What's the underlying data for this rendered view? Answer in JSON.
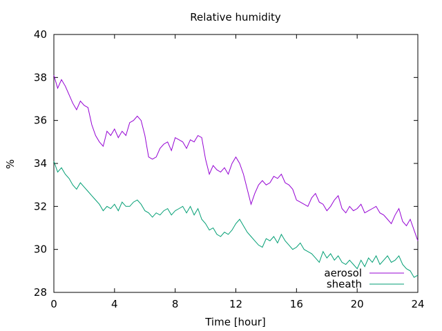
{
  "chart_data": {
    "type": "line",
    "title": "Relative humidity",
    "xlabel": "Time [hour]",
    "ylabel": "%",
    "xlim": [
      0,
      24
    ],
    "ylim": [
      28,
      40
    ],
    "x_ticks": [
      0,
      4,
      8,
      12,
      16,
      20,
      24
    ],
    "y_ticks": [
      28,
      30,
      32,
      34,
      36,
      38,
      40
    ],
    "grid": false,
    "legend_position": "bottom-right",
    "series": [
      {
        "name": "aerosol",
        "color": "#9400d3",
        "x": [
          0,
          0.25,
          0.5,
          0.75,
          1.0,
          1.25,
          1.5,
          1.75,
          2.0,
          2.25,
          2.5,
          2.75,
          3.0,
          3.25,
          3.5,
          3.75,
          4.0,
          4.25,
          4.5,
          4.75,
          5.0,
          5.25,
          5.5,
          5.75,
          6.0,
          6.25,
          6.5,
          6.75,
          7.0,
          7.25,
          7.5,
          7.75,
          8.0,
          8.25,
          8.5,
          8.75,
          9.0,
          9.25,
          9.5,
          9.75,
          10.0,
          10.25,
          10.5,
          10.75,
          11.0,
          11.25,
          11.5,
          11.75,
          12.0,
          12.25,
          12.5,
          12.75,
          13.0,
          13.25,
          13.5,
          13.75,
          14.0,
          14.25,
          14.5,
          14.75,
          15.0,
          15.25,
          15.5,
          15.75,
          16.0,
          16.25,
          16.5,
          16.75,
          17.0,
          17.25,
          17.5,
          17.75,
          18.0,
          18.25,
          18.5,
          18.75,
          19.0,
          19.25,
          19.5,
          19.75,
          20.0,
          20.25,
          20.5,
          20.75,
          21.0,
          21.25,
          21.5,
          21.75,
          22.0,
          22.25,
          22.5,
          22.75,
          23.0,
          23.25,
          23.5,
          23.75,
          24.0
        ],
        "y": [
          38.1,
          37.5,
          37.9,
          37.6,
          37.2,
          36.8,
          36.5,
          36.9,
          36.7,
          36.6,
          35.8,
          35.3,
          35.0,
          34.8,
          35.5,
          35.3,
          35.6,
          35.2,
          35.5,
          35.3,
          35.9,
          36.0,
          36.2,
          36.0,
          35.3,
          34.3,
          34.2,
          34.3,
          34.7,
          34.9,
          35.0,
          34.6,
          35.2,
          35.1,
          35.0,
          34.7,
          35.1,
          35.0,
          35.3,
          35.2,
          34.2,
          33.5,
          33.9,
          33.7,
          33.6,
          33.8,
          33.5,
          34.0,
          34.3,
          34.0,
          33.5,
          32.8,
          32.1,
          32.6,
          33.0,
          33.2,
          33.0,
          33.1,
          33.4,
          33.3,
          33.5,
          33.1,
          33.0,
          32.8,
          32.3,
          32.2,
          32.1,
          32.0,
          32.4,
          32.6,
          32.2,
          32.1,
          31.8,
          32.0,
          32.3,
          32.5,
          31.9,
          31.7,
          32.0,
          31.8,
          31.9,
          32.1,
          31.7,
          31.8,
          31.9,
          32.0,
          31.7,
          31.6,
          31.4,
          31.2,
          31.6,
          31.9,
          31.3,
          31.1,
          31.4,
          30.9,
          30.4
        ]
      },
      {
        "name": "sheath",
        "color": "#009e73",
        "x": [
          0,
          0.25,
          0.5,
          0.75,
          1.0,
          1.25,
          1.5,
          1.75,
          2.0,
          2.25,
          2.5,
          2.75,
          3.0,
          3.25,
          3.5,
          3.75,
          4.0,
          4.25,
          4.5,
          4.75,
          5.0,
          5.25,
          5.5,
          5.75,
          6.0,
          6.25,
          6.5,
          6.75,
          7.0,
          7.25,
          7.5,
          7.75,
          8.0,
          8.25,
          8.5,
          8.75,
          9.0,
          9.25,
          9.5,
          9.75,
          10.0,
          10.25,
          10.5,
          10.75,
          11.0,
          11.25,
          11.5,
          11.75,
          12.0,
          12.25,
          12.5,
          12.75,
          13.0,
          13.25,
          13.5,
          13.75,
          14.0,
          14.25,
          14.5,
          14.75,
          15.0,
          15.25,
          15.5,
          15.75,
          16.0,
          16.25,
          16.5,
          16.75,
          17.0,
          17.25,
          17.5,
          17.75,
          18.0,
          18.25,
          18.5,
          18.75,
          19.0,
          19.25,
          19.5,
          19.75,
          20.0,
          20.25,
          20.5,
          20.75,
          21.0,
          21.25,
          21.5,
          21.75,
          22.0,
          22.25,
          22.5,
          22.75,
          23.0,
          23.25,
          23.5,
          23.75,
          24.0
        ],
        "y": [
          34.1,
          33.6,
          33.8,
          33.5,
          33.3,
          33.0,
          32.8,
          33.1,
          32.9,
          32.7,
          32.5,
          32.3,
          32.1,
          31.8,
          32.0,
          31.9,
          32.1,
          31.8,
          32.2,
          32.0,
          32.0,
          32.2,
          32.3,
          32.1,
          31.8,
          31.7,
          31.5,
          31.7,
          31.6,
          31.8,
          31.9,
          31.6,
          31.8,
          31.9,
          32.0,
          31.7,
          32.0,
          31.6,
          31.9,
          31.4,
          31.2,
          30.9,
          31.0,
          30.7,
          30.6,
          30.8,
          30.7,
          30.9,
          31.2,
          31.4,
          31.1,
          30.8,
          30.6,
          30.4,
          30.2,
          30.1,
          30.5,
          30.4,
          30.6,
          30.3,
          30.7,
          30.4,
          30.2,
          30.0,
          30.1,
          30.3,
          30.0,
          29.9,
          29.8,
          29.6,
          29.4,
          29.9,
          29.6,
          29.8,
          29.5,
          29.7,
          29.4,
          29.3,
          29.5,
          29.3,
          29.1,
          29.5,
          29.2,
          29.6,
          29.4,
          29.7,
          29.3,
          29.5,
          29.7,
          29.4,
          29.5,
          29.7,
          29.3,
          29.1,
          29.0,
          28.7,
          28.8
        ]
      }
    ]
  }
}
